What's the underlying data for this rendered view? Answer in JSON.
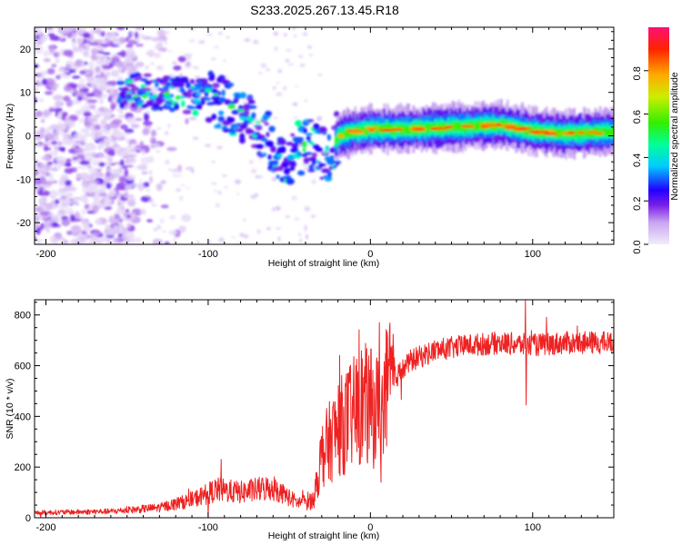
{
  "chart_data": [
    {
      "type": "heatmap",
      "title": "S233.2025.267.13.45.R18",
      "xlabel": "Height of straight line (km)",
      "ylabel": "Frequency (Hz)",
      "xlim": [
        -207,
        150
      ],
      "ylim": [
        -25,
        25
      ],
      "xticks": [
        -200,
        -100,
        0,
        100
      ],
      "yticks": [
        -20,
        -10,
        0,
        10,
        20
      ],
      "colorbar": {
        "label": "Normalized spectral amplitude",
        "range": [
          0,
          1
        ],
        "ticks": [
          "0.0",
          "0.2",
          "0.4",
          "0.6",
          "0.8"
        ]
      },
      "ridge": {
        "description_points": [
          [
            -155,
            11
          ],
          [
            -140,
            10.5
          ],
          [
            -120,
            9.5
          ],
          [
            -100,
            9
          ],
          [
            -90,
            7
          ],
          [
            -80,
            5
          ],
          [
            -70,
            2
          ],
          [
            -60,
            -2
          ],
          [
            -52,
            -8
          ],
          [
            -45,
            -3
          ],
          [
            -35,
            -2
          ],
          [
            -28,
            -5
          ],
          [
            -20,
            0
          ],
          [
            -10,
            1
          ],
          [
            0,
            1.5
          ],
          [
            20,
            1.5
          ],
          [
            50,
            2
          ],
          [
            80,
            2.5
          ],
          [
            100,
            1
          ],
          [
            120,
            0.5
          ],
          [
            150,
            1
          ]
        ]
      }
    },
    {
      "type": "line",
      "xlabel": "Height of straight line (km)",
      "ylabel": "SNR (10 * v/v)",
      "xlim": [
        -207,
        150
      ],
      "ylim": [
        0,
        860
      ],
      "xticks": [
        -200,
        -100,
        0,
        100
      ],
      "yticks": [
        0,
        200,
        400,
        600,
        800
      ],
      "series": [
        {
          "name": "SNR",
          "color": "#ee2222",
          "envelope": [
            [
              -207,
              20
            ],
            [
              -160,
              25
            ],
            [
              -130,
              40
            ],
            [
              -110,
              70
            ],
            [
              -95,
              110
            ],
            [
              -80,
              100
            ],
            [
              -60,
              120
            ],
            [
              -45,
              60
            ],
            [
              -35,
              70
            ],
            [
              -30,
              250
            ],
            [
              -20,
              350
            ],
            [
              -12,
              400
            ],
            [
              -5,
              450
            ],
            [
              5,
              420
            ],
            [
              15,
              550
            ],
            [
              25,
              620
            ],
            [
              40,
              660
            ],
            [
              60,
              680
            ],
            [
              80,
              690
            ],
            [
              100,
              680
            ],
            [
              120,
              690
            ],
            [
              150,
              690
            ]
          ]
        }
      ]
    }
  ]
}
